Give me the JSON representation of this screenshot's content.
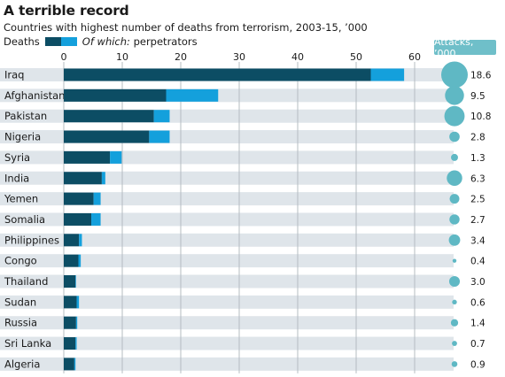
{
  "title": "A terrible record",
  "subtitle": "Countries with highest number of deaths from terrorism, 2003-15, ’000",
  "legend": {
    "deaths_label": "Deaths",
    "of_which": "Of which:",
    "perpetrators": " perpetrators"
  },
  "attacks_header": "Attacks, ’000",
  "colors": {
    "deaths": "#0c4d64",
    "perpetrators": "#14a0dc",
    "bubble": "#5fb8c4",
    "row_bg": "#dfe5ea",
    "grid": "#b5bcc2",
    "attacks_badge": "#6fbfc9"
  },
  "chart_data": {
    "type": "bar",
    "orientation": "horizontal",
    "stacked": true,
    "xlim": [
      0,
      60
    ],
    "x_ticks": [
      0,
      10,
      20,
      30,
      40,
      50,
      60
    ],
    "grid": true,
    "legend_position": "top-left",
    "categories": [
      "Iraq",
      "Afghanistan",
      "Pakistan",
      "Nigeria",
      "Syria",
      "India",
      "Yemen",
      "Somalia",
      "Philippines",
      "Congo",
      "Thailand",
      "Sudan",
      "Russia",
      "Sri Lanka",
      "Algeria"
    ],
    "series": [
      {
        "name": "Deaths",
        "values": [
          52.5,
          17.5,
          15.4,
          14.6,
          7.9,
          6.5,
          5.1,
          4.7,
          2.6,
          2.5,
          2.0,
          2.2,
          2.1,
          2.0,
          1.8
        ]
      },
      {
        "name": "perpetrators",
        "values": [
          5.7,
          8.9,
          2.7,
          3.5,
          2.0,
          0.6,
          1.2,
          1.6,
          0.5,
          0.4,
          0.1,
          0.4,
          0.2,
          0.2,
          0.2
        ]
      }
    ],
    "attacks": [
      18.6,
      9.5,
      10.8,
      2.8,
      1.3,
      6.3,
      2.5,
      2.7,
      3.4,
      0.4,
      3.0,
      0.6,
      1.4,
      0.7,
      0.9
    ],
    "attack_labels": [
      "18.6",
      "9.5",
      "10.8",
      "2.8",
      "1.3",
      "6.3",
      "2.5",
      "2.7",
      "3.4",
      "0.4",
      "3.0",
      "0.6",
      "1.4",
      "0.7",
      "0.9"
    ]
  }
}
